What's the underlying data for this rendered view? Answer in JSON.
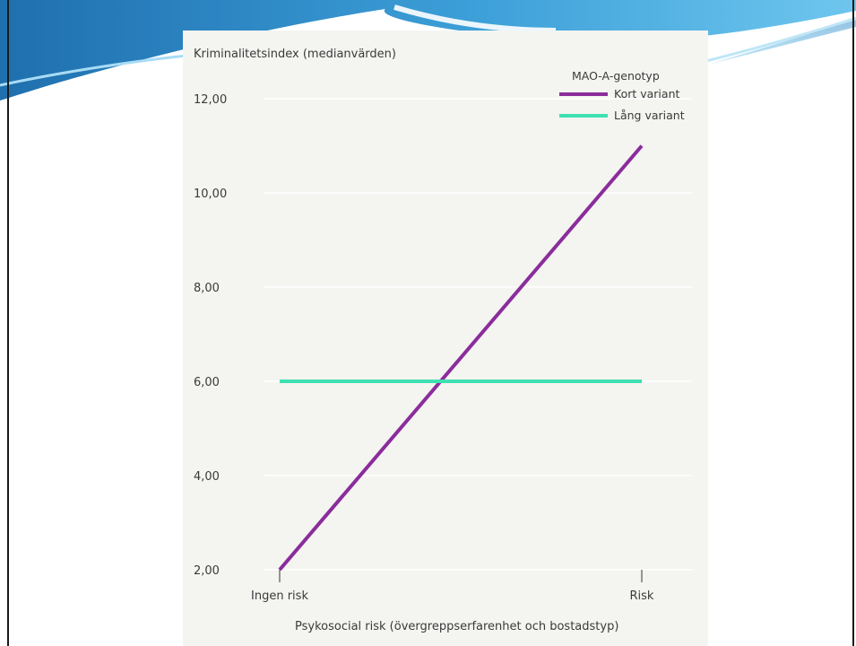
{
  "colors": {
    "banner_dark": "#1f6fae",
    "banner_light": "#6ec6ee",
    "panel_background": "#f4f4f1",
    "gridline": "#ffffff",
    "series_short": "#8a2d9b",
    "series_long": "#3ee0b0"
  },
  "chart_data": {
    "type": "line",
    "title": "",
    "ylabel": "Kriminalitetsindex (medianvärden)",
    "xlabel": "Psykosocial risk (övergreppserfarenhet och bostadstyp)",
    "categories": [
      "Ingen risk",
      "Risk"
    ],
    "y_ticks": [
      "2,00",
      "4,00",
      "6,00",
      "8,00",
      "10,00",
      "12,00"
    ],
    "ylim": [
      2,
      12
    ],
    "grid": true,
    "legend": {
      "title": "MAO-A-genotyp",
      "placement": "top-right"
    },
    "series": [
      {
        "name": "Kort variant",
        "values": [
          2.0,
          11.0
        ],
        "color": "#8a2d9b"
      },
      {
        "name": "Lång variant",
        "values": [
          6.0,
          6.0
        ],
        "color": "#3ee0b0"
      }
    ]
  }
}
